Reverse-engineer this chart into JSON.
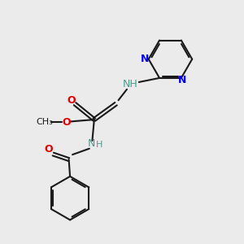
{
  "background_color": "#ebebeb",
  "bond_color": "#1a1a1a",
  "nitrogen_color": "#0000ee",
  "oxygen_color": "#dd0000",
  "nh_color": "#4a9a8a",
  "figsize": [
    3.0,
    3.0
  ],
  "dpi": 100,
  "xlim": [
    0,
    10
  ],
  "ylim": [
    0,
    10
  ]
}
